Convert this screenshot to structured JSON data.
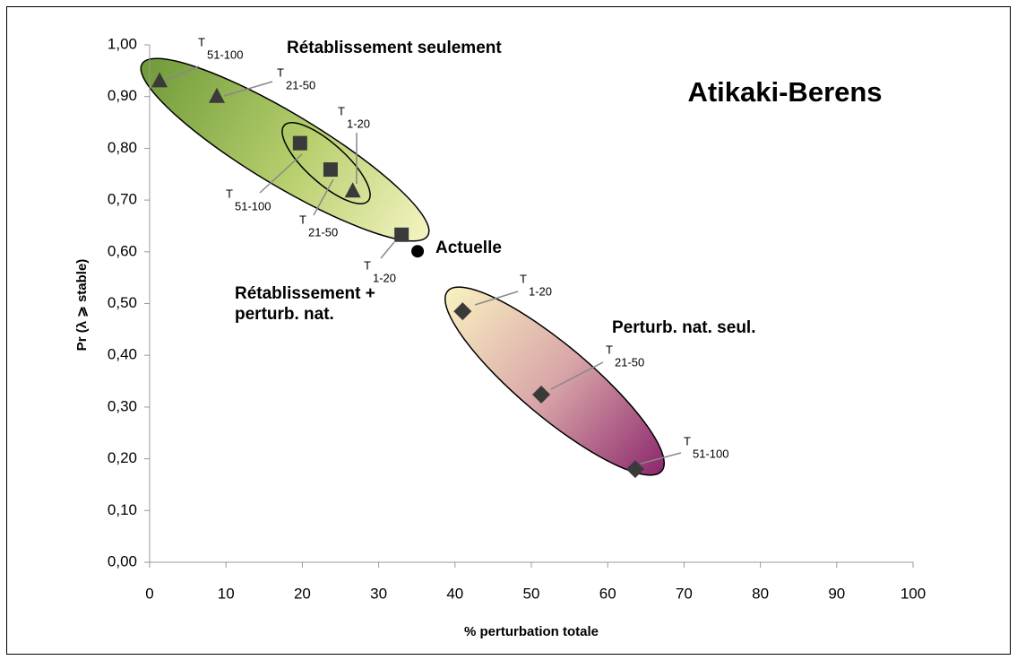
{
  "chart_data": {
    "type": "scatter",
    "title": "Atikaki-Berens",
    "xlabel": "% perturbation totale",
    "ylabel": "Pr (λ ⩾ stable)",
    "xlim": [
      0,
      100
    ],
    "xticks": [
      0,
      10,
      20,
      30,
      40,
      50,
      60,
      70,
      80,
      90,
      100
    ],
    "ylim": [
      0,
      1
    ],
    "yticks": [
      {
        "value": 0,
        "label": "0,00"
      },
      {
        "value": 0.1,
        "label": "0,10"
      },
      {
        "value": 0.2,
        "label": "0,20"
      },
      {
        "value": 0.3,
        "label": "0,30"
      },
      {
        "value": 0.4,
        "label": "0,40"
      },
      {
        "value": 0.5,
        "label": "0,50"
      },
      {
        "value": 0.6,
        "label": "0,60"
      },
      {
        "value": 0.7,
        "label": "0,70"
      },
      {
        "value": 0.8,
        "label": "0,80"
      },
      {
        "value": 0.9,
        "label": "0,90"
      },
      {
        "value": 1,
        "label": "1,00"
      }
    ],
    "label_prefix": "T",
    "series": [
      {
        "name": "Rétablissement seulement",
        "marker": "triangle",
        "color": "#3a3a3a",
        "x": [
          1.3,
          8.8,
          26.6
        ],
        "values": [
          0.93,
          0.9,
          0.717
        ],
        "point_labels": [
          "51-100",
          "21-50",
          "1-20"
        ]
      },
      {
        "name": "Rétablissement + perturb. nat.",
        "marker": "square",
        "color": "#3a3a3a",
        "x": [
          19.7,
          23.7,
          33.0
        ],
        "values": [
          0.81,
          0.759,
          0.633
        ],
        "point_labels": [
          "51-100",
          "21-50",
          "1-20"
        ]
      },
      {
        "name": "Perturb. nat. seul.",
        "marker": "diamond",
        "color": "#3a3a3a",
        "x": [
          41.0,
          51.3,
          63.6
        ],
        "values": [
          0.485,
          0.324,
          0.18
        ],
        "point_labels": [
          "1-20",
          "21-50",
          "51-100"
        ]
      },
      {
        "name": "Actuelle",
        "marker": "circle",
        "color": "#000000",
        "x": [
          35.1
        ],
        "values": [
          0.601
        ]
      }
    ]
  }
}
